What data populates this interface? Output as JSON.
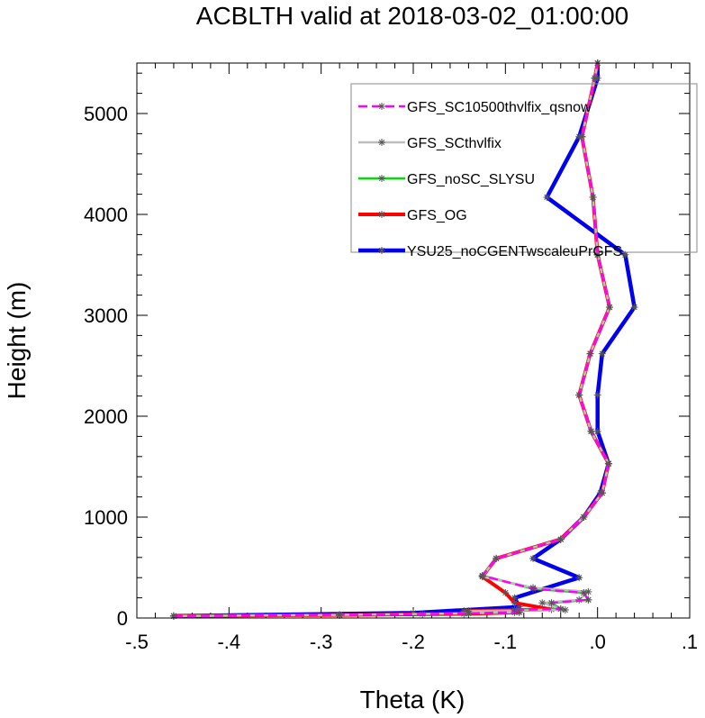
{
  "chart_data": {
    "type": "line",
    "title": "ACBLTH valid at 2018-03-02_01:00:00",
    "xlabel": "Theta (K)",
    "ylabel": "Height (m)",
    "xlim": [
      -0.5,
      0.1
    ],
    "ylim": [
      0,
      5500
    ],
    "x_ticks": [
      -0.5,
      -0.4,
      -0.3,
      -0.2,
      -0.1,
      0.0,
      0.1
    ],
    "x_tick_labels": [
      "-.5",
      "-.4",
      "-.3",
      "-.2",
      "-.1",
      ".0",
      ".1"
    ],
    "y_ticks": [
      0,
      1000,
      2000,
      3000,
      4000,
      5000
    ],
    "y_tick_labels": [
      "0",
      "1000",
      "2000",
      "3000",
      "4000",
      "5000"
    ],
    "grid": false,
    "legend_position": "top-right",
    "series": [
      {
        "name": "GFS_SC10500thvlfix_qsnow",
        "color": "#ff00ff",
        "dash": "dashed",
        "marker": "asterisk",
        "points": [
          [
            -0.46,
            20
          ],
          [
            -0.28,
            30
          ],
          [
            -0.14,
            45
          ],
          [
            -0.085,
            60
          ],
          [
            -0.09,
            80
          ],
          [
            -0.04,
            90
          ],
          [
            -0.05,
            150
          ],
          [
            -0.01,
            180
          ],
          [
            -0.015,
            250
          ],
          [
            -0.07,
            290
          ],
          [
            -0.125,
            420
          ],
          [
            -0.11,
            590
          ],
          [
            -0.04,
            780
          ],
          [
            -0.015,
            1000
          ],
          [
            0.005,
            1240
          ],
          [
            0.012,
            1530
          ],
          [
            -0.007,
            1850
          ],
          [
            -0.02,
            2210
          ],
          [
            -0.008,
            2620
          ],
          [
            0.013,
            3080
          ],
          [
            0.0,
            3600
          ],
          [
            -0.005,
            4170
          ],
          [
            -0.017,
            4770
          ],
          [
            -0.003,
            5350
          ],
          [
            0.0,
            5500
          ]
        ]
      },
      {
        "name": "GFS_SCthvlfix",
        "color": "#bdbdbd",
        "dash": "solid",
        "marker": "asterisk",
        "points": [
          [
            -0.46,
            20
          ],
          [
            -0.28,
            30
          ],
          [
            -0.19,
            40
          ],
          [
            -0.09,
            55
          ],
          [
            -0.14,
            70
          ],
          [
            -0.035,
            80
          ],
          [
            -0.06,
            150
          ],
          [
            -0.02,
            180
          ],
          [
            -0.01,
            260
          ],
          [
            -0.07,
            300
          ],
          [
            -0.125,
            410
          ],
          [
            -0.11,
            590
          ],
          [
            -0.04,
            780
          ],
          [
            -0.015,
            1000
          ],
          [
            0.005,
            1240
          ],
          [
            0.012,
            1530
          ],
          [
            -0.007,
            1850
          ],
          [
            -0.02,
            2210
          ],
          [
            -0.008,
            2620
          ],
          [
            0.013,
            3080
          ],
          [
            0.0,
            3600
          ],
          [
            -0.005,
            4170
          ],
          [
            -0.017,
            4770
          ],
          [
            -0.003,
            5350
          ],
          [
            0.0,
            5500
          ]
        ]
      },
      {
        "name": "GFS_noSC_SLYSU",
        "color": "#00dd00",
        "dash": "solid",
        "marker": "asterisk",
        "points": [
          [
            -0.46,
            20
          ],
          [
            -0.28,
            30
          ],
          [
            -0.14,
            45
          ],
          [
            -0.09,
            60
          ],
          [
            -0.09,
            80
          ],
          [
            -0.04,
            90
          ],
          [
            -0.05,
            150
          ],
          [
            -0.01,
            180
          ],
          [
            -0.015,
            250
          ],
          [
            -0.07,
            290
          ],
          [
            -0.125,
            420
          ],
          [
            -0.11,
            590
          ],
          [
            -0.04,
            780
          ],
          [
            -0.015,
            1000
          ],
          [
            0.005,
            1240
          ],
          [
            0.012,
            1530
          ],
          [
            -0.007,
            1850
          ],
          [
            -0.02,
            2210
          ],
          [
            -0.008,
            2620
          ],
          [
            0.013,
            3080
          ],
          [
            0.0,
            3600
          ],
          [
            -0.005,
            4170
          ],
          [
            -0.017,
            4770
          ],
          [
            -0.003,
            5350
          ],
          [
            0.0,
            5500
          ]
        ]
      },
      {
        "name": "GFS_OG",
        "color": "#ff0000",
        "dash": "solid",
        "marker": "asterisk",
        "points": [
          [
            -0.46,
            20
          ],
          [
            -0.28,
            30
          ],
          [
            -0.145,
            40
          ],
          [
            -0.085,
            55
          ],
          [
            -0.145,
            70
          ],
          [
            -0.05,
            85
          ],
          [
            -0.09,
            150
          ],
          [
            -0.1,
            250
          ],
          [
            -0.125,
            410
          ],
          [
            -0.11,
            590
          ],
          [
            -0.04,
            780
          ],
          [
            -0.015,
            1000
          ],
          [
            0.005,
            1240
          ],
          [
            0.012,
            1530
          ],
          [
            -0.007,
            1850
          ],
          [
            -0.02,
            2210
          ],
          [
            -0.008,
            2620
          ],
          [
            0.013,
            3080
          ],
          [
            0.0,
            3600
          ],
          [
            -0.005,
            4170
          ],
          [
            -0.017,
            4770
          ],
          [
            -0.003,
            5350
          ],
          [
            0.0,
            5500
          ]
        ]
      },
      {
        "name": "YSU25_noCGENTwscaleuPrGFS",
        "color": "#0000ee",
        "dash": "solid",
        "marker": "asterisk",
        "points": [
          [
            -0.46,
            20
          ],
          [
            -0.2,
            50
          ],
          [
            -0.085,
            110
          ],
          [
            -0.09,
            200
          ],
          [
            -0.02,
            400
          ],
          [
            -0.07,
            590
          ],
          [
            -0.04,
            780
          ],
          [
            -0.015,
            1000
          ],
          [
            0.003,
            1240
          ],
          [
            0.012,
            1530
          ],
          [
            0.0,
            1850
          ],
          [
            0.0,
            2210
          ],
          [
            0.005,
            2620
          ],
          [
            0.04,
            3080
          ],
          [
            0.03,
            3600
          ],
          [
            -0.055,
            4170
          ],
          [
            -0.02,
            4770
          ],
          [
            0.0,
            5350
          ],
          [
            0.0,
            5500
          ]
        ]
      }
    ]
  }
}
